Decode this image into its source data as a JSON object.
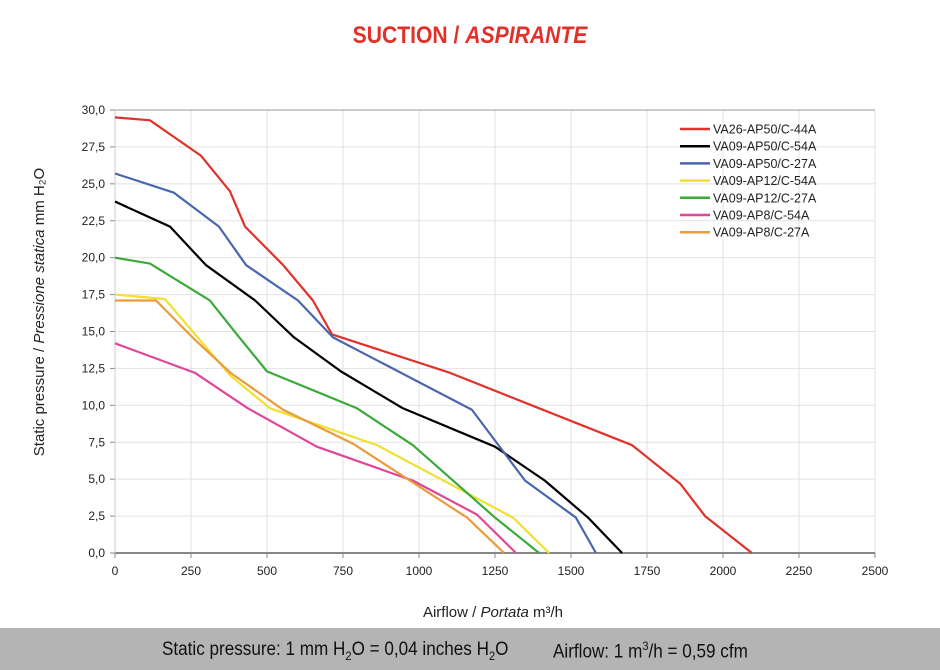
{
  "title": {
    "main": "SUCTION /",
    "italic": "ASPIRANTE"
  },
  "footer": {
    "pressure_note": [
      "Static pressure: 1 mm H",
      "2",
      "O = 0,04 inches H",
      "2",
      "O"
    ],
    "airflow_note": [
      "Airflow: 1 m",
      "3",
      "/h = 0,59 cfm"
    ]
  },
  "chart_data": {
    "type": "line",
    "xlabel": {
      "text": "Airflow / ",
      "italic": "Portata",
      "unit": "m³/h"
    },
    "ylabel": {
      "text": "Static pressure / ",
      "italic": "Pressione statica",
      "unit": "mm  H₂O"
    },
    "xlim": [
      0,
      2500
    ],
    "ylim": [
      0,
      30
    ],
    "xticks": [
      "0",
      "250",
      "500",
      "750",
      "1000",
      "1250",
      "1500",
      "1750",
      "2000",
      "2250",
      "2500"
    ],
    "yticks": [
      "0,0",
      "2,5",
      "5,0",
      "7,5",
      "10,0",
      "12,5",
      "15,0",
      "17,5",
      "20,0",
      "22,5",
      "25,0",
      "27,5",
      "30,0"
    ],
    "grid": true,
    "legend_position": "top-right",
    "series": [
      {
        "name": "VA26-AP50/C-44A",
        "color": "#e0322b",
        "points": [
          [
            0,
            29.5
          ],
          [
            115,
            29.3
          ],
          [
            283,
            26.9
          ],
          [
            378,
            24.5
          ],
          [
            428,
            22.1
          ],
          [
            553,
            19.5
          ],
          [
            651,
            17.1
          ],
          [
            714,
            14.8
          ],
          [
            1102,
            12.2
          ],
          [
            1701,
            7.3
          ],
          [
            1859,
            4.7
          ],
          [
            1941,
            2.5
          ],
          [
            2095,
            0
          ]
        ]
      },
      {
        "name": "VA09-AP50/C-54A",
        "color": "#000000",
        "points": [
          [
            0,
            23.8
          ],
          [
            181,
            22.1
          ],
          [
            299,
            19.5
          ],
          [
            461,
            17.1
          ],
          [
            589,
            14.6
          ],
          [
            743,
            12.3
          ],
          [
            947,
            9.8
          ],
          [
            1250,
            7.2
          ],
          [
            1414,
            4.9
          ],
          [
            1556,
            2.4
          ],
          [
            1668,
            0
          ]
        ]
      },
      {
        "name": "VA09-AP50/C-27A",
        "color": "#4a66ac",
        "points": [
          [
            0,
            25.7
          ],
          [
            194,
            24.4
          ],
          [
            342,
            22.1
          ],
          [
            431,
            19.5
          ],
          [
            602,
            17.1
          ],
          [
            717,
            14.6
          ],
          [
            1174,
            9.7
          ],
          [
            1349,
            4.9
          ],
          [
            1516,
            2.4
          ],
          [
            1582,
            0
          ]
        ]
      },
      {
        "name": "VA09-AP12/C-54A",
        "color": "#f0e030",
        "points": [
          [
            0,
            17.5
          ],
          [
            164,
            17.2
          ],
          [
            380,
            12.0
          ],
          [
            510,
            9.8
          ],
          [
            862,
            7.3
          ],
          [
            1309,
            2.4
          ],
          [
            1428,
            0
          ]
        ]
      },
      {
        "name": "VA09-AP12/C-27A",
        "color": "#3aaa3a",
        "points": [
          [
            0,
            20.0
          ],
          [
            115,
            19.6
          ],
          [
            312,
            17.1
          ],
          [
            401,
            14.8
          ],
          [
            500,
            12.3
          ],
          [
            796,
            9.8
          ],
          [
            980,
            7.3
          ],
          [
            1250,
            2.4
          ],
          [
            1395,
            0
          ]
        ]
      },
      {
        "name": "VA09-AP8/C-54A",
        "color": "#e0459a",
        "points": [
          [
            0,
            14.2
          ],
          [
            263,
            12.2
          ],
          [
            437,
            9.8
          ],
          [
            664,
            7.2
          ],
          [
            980,
            4.9
          ],
          [
            1191,
            2.6
          ],
          [
            1319,
            0
          ]
        ]
      },
      {
        "name": "VA09-AP8/C-27A",
        "color": "#eb9a3c",
        "points": [
          [
            0,
            17.1
          ],
          [
            135,
            17.1
          ],
          [
            260,
            14.5
          ],
          [
            380,
            12.2
          ],
          [
            553,
            9.7
          ],
          [
            783,
            7.4
          ],
          [
            1158,
            2.4
          ],
          [
            1280,
            0
          ]
        ]
      }
    ]
  }
}
